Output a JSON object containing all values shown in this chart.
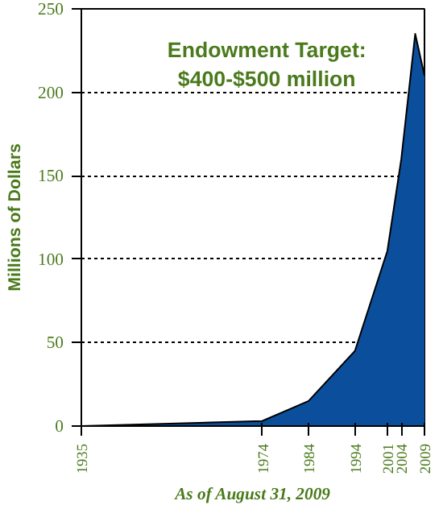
{
  "chart_data": {
    "type": "area",
    "title": "Endowment Target: $400-$500 million",
    "ylabel": "Millions of Dollars",
    "xlabel": "As of August 31, 2009",
    "x": [
      1935,
      1974,
      1984,
      1994,
      2001,
      2004,
      2007,
      2009
    ],
    "series": [
      {
        "color": "#0b4f9c",
        "values": [
          0,
          3,
          15,
          45,
          105,
          160,
          235,
          210
        ]
      }
    ],
    "xlim": [
      1935,
      2009
    ],
    "xticks": [
      1935,
      1974,
      1984,
      1994,
      2001,
      2004,
      2009
    ],
    "ylim": [
      0,
      250
    ],
    "yticks": [
      0,
      50,
      100,
      150,
      200,
      250
    ],
    "grid": "y",
    "line_style": "solid"
  }
}
